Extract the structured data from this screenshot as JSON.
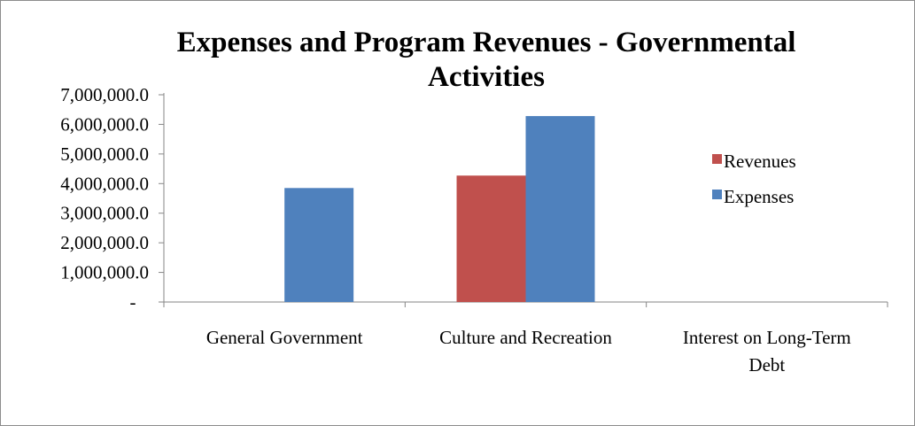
{
  "chart_data": {
    "type": "bar",
    "title": "Expenses and Program Revenues - Governmental Activities",
    "title_lines": [
      "Expenses and Program Revenues - Governmental",
      "Activities"
    ],
    "xlabel": "",
    "ylabel": "",
    "categories": [
      "General Government",
      "Culture and Recreation",
      "Interest on Long-Term Debt"
    ],
    "category_lines": [
      [
        "General Government"
      ],
      [
        "Culture and Recreation"
      ],
      [
        "Interest on Long-Term",
        "Debt"
      ]
    ],
    "series": [
      {
        "name": "Revenues",
        "color": "#c0504d",
        "values": [
          0,
          4270000,
          0
        ]
      },
      {
        "name": "Expenses",
        "color": "#4f81bd",
        "values": [
          3850000,
          6280000,
          0
        ]
      }
    ],
    "ylim": [
      0,
      7000000
    ],
    "y_ticks": [
      0,
      1000000,
      2000000,
      3000000,
      4000000,
      5000000,
      6000000,
      7000000
    ],
    "y_tick_labels": [
      "-",
      "1,000,000.0",
      "2,000,000.0",
      "3,000,000.0",
      "4,000,000.0",
      "5,000,000.0",
      "6,000,000.0",
      "7,000,000.0"
    ],
    "grid": false,
    "legend_position": "right"
  }
}
